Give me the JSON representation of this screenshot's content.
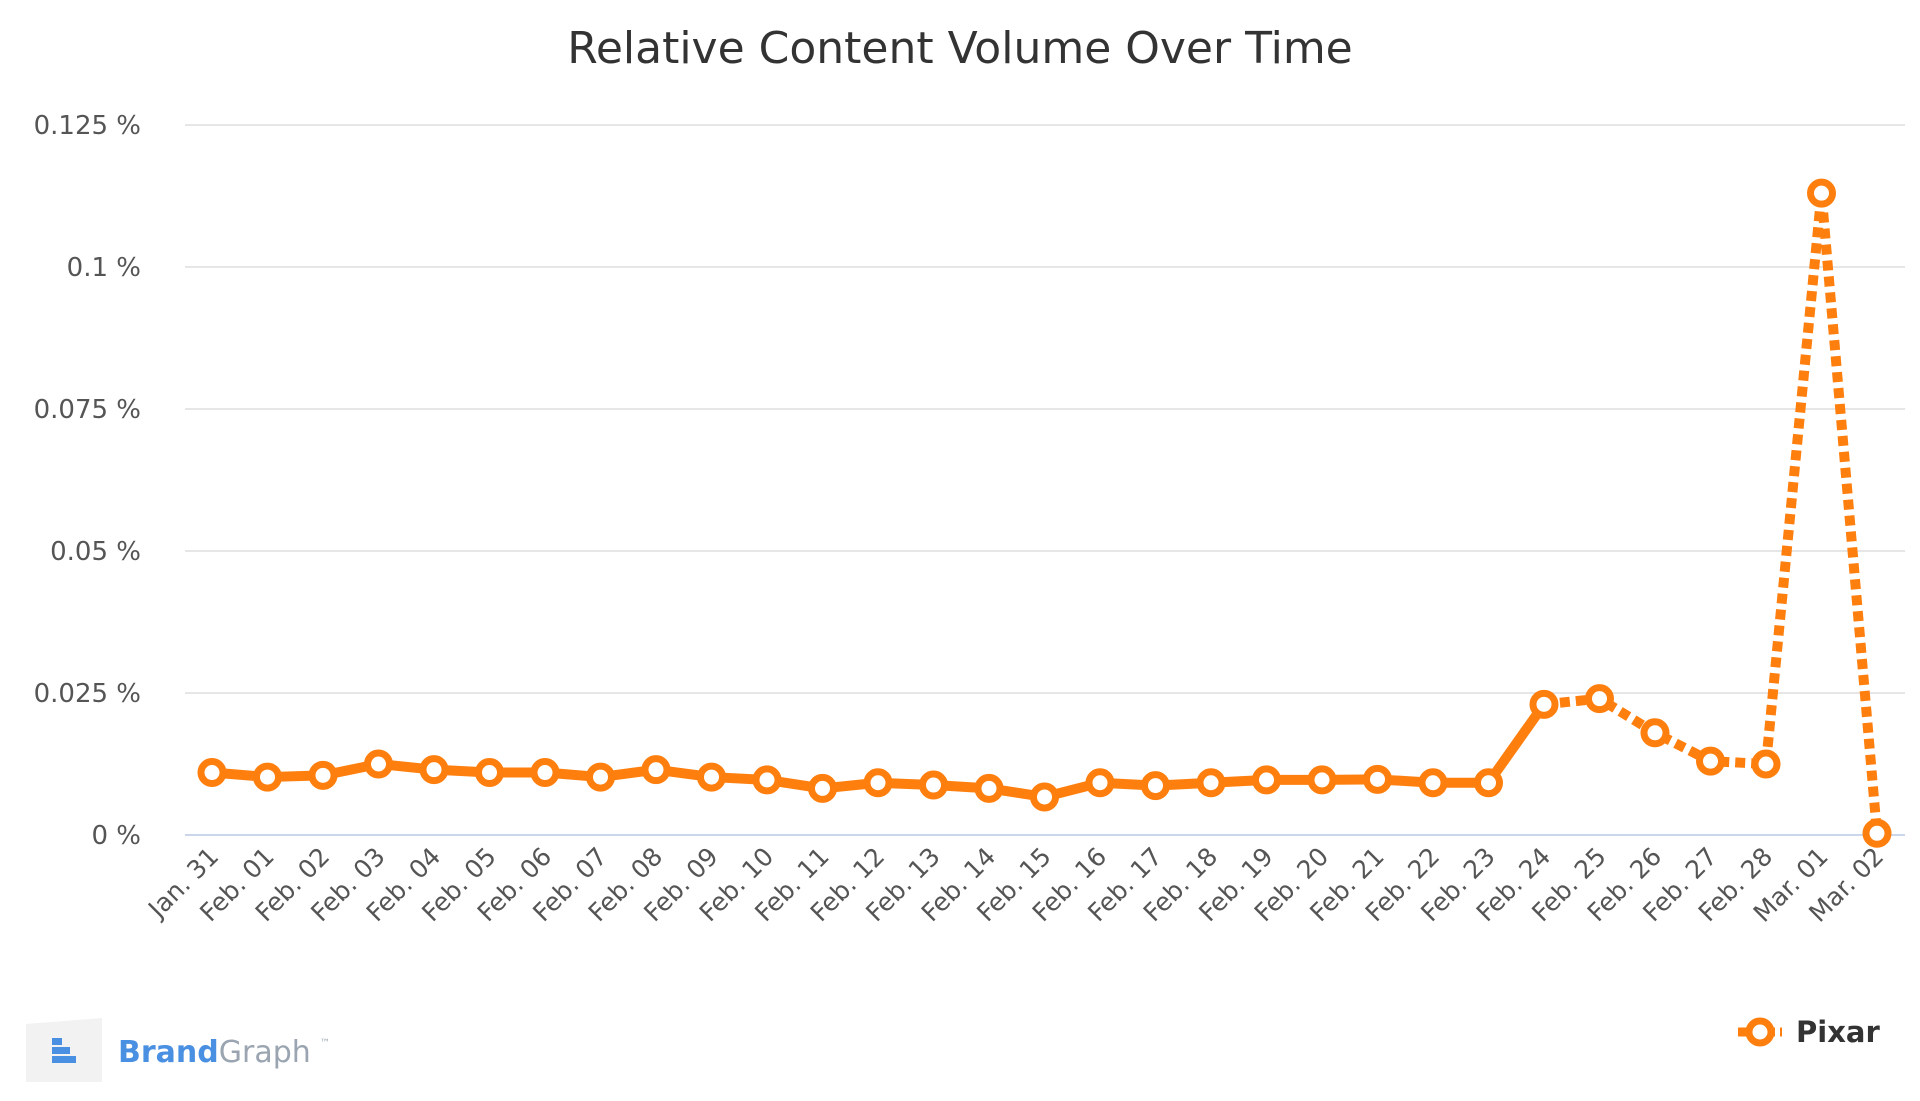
{
  "colors": {
    "series": "#ff7f0e",
    "grid": "#e6e6e6",
    "baseline": "#ccd6eb",
    "brand_primary": "#4a90e2",
    "brand_secondary": "#9aa5b1"
  },
  "brand": {
    "name_part1": "Brand",
    "name_part2": "Graph",
    "tm": "™",
    "logo_icon": "brandgraph-logo-icon"
  },
  "chart_data": {
    "type": "line",
    "title": "Relative Content Volume Over Time",
    "xlabel": "",
    "ylabel": "",
    "ylim": [
      0,
      0.125
    ],
    "y_ticks": [
      0,
      0.025,
      0.05,
      0.075,
      0.1,
      0.125
    ],
    "y_tick_labels": [
      "0 %",
      "0.025 %",
      "0.05 %",
      "0.075 %",
      "0.1 %",
      "0.125 %"
    ],
    "grid": true,
    "legend_position": "bottom-right",
    "categories": [
      "Jan. 31",
      "Feb. 01",
      "Feb. 02",
      "Feb. 03",
      "Feb. 04",
      "Feb. 05",
      "Feb. 06",
      "Feb. 07",
      "Feb. 08",
      "Feb. 09",
      "Feb. 10",
      "Feb. 11",
      "Feb. 12",
      "Feb. 13",
      "Feb. 14",
      "Feb. 15",
      "Feb. 16",
      "Feb. 17",
      "Feb. 18",
      "Feb. 19",
      "Feb. 20",
      "Feb. 21",
      "Feb. 22",
      "Feb. 23",
      "Feb. 24",
      "Feb. 25",
      "Feb. 26",
      "Feb. 27",
      "Feb. 28",
      "Mar. 01",
      "Mar. 02"
    ],
    "series": [
      {
        "name": "Pixar",
        "values": [
          0.011,
          0.0102,
          0.0105,
          0.0125,
          0.0115,
          0.011,
          0.011,
          0.0102,
          0.0115,
          0.0102,
          0.0097,
          0.0082,
          0.0092,
          0.0088,
          0.0082,
          0.0067,
          0.0092,
          0.0087,
          0.0092,
          0.0097,
          0.0097,
          0.0098,
          0.0092,
          0.0092,
          0.023,
          0.024,
          0.018,
          0.013,
          0.0125,
          0.113,
          0.0003
        ],
        "dashed_from_category": "Feb. 24"
      }
    ]
  }
}
